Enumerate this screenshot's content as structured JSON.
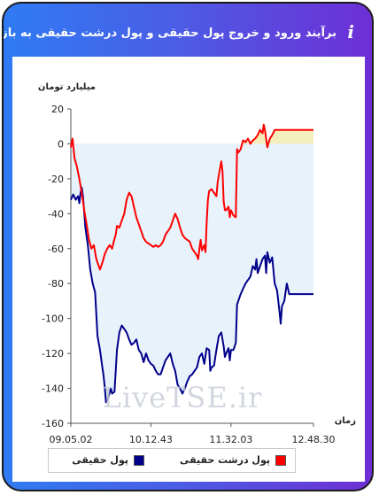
{
  "header": {
    "title": "برآیند ورود و خروج پول حقیقی و پول درشت حقیقی به بازار",
    "info_icon": "info-icon"
  },
  "watermark": "LiveTSE.ir",
  "chart_data": {
    "type": "line",
    "ylabel": "میلیارد تومان",
    "xlabel": "زمان",
    "ylim": [
      -160,
      20
    ],
    "yticks": [
      20,
      0,
      -20,
      -40,
      -60,
      -80,
      -100,
      -120,
      -140,
      -160
    ],
    "xlim": [
      0,
      100
    ],
    "xticks": [
      {
        "x": 0,
        "label": "09.05.02"
      },
      {
        "x": 33,
        "label": "10.12.43"
      },
      {
        "x": 66,
        "label": "11.32.03"
      },
      {
        "x": 100,
        "label": "12.48.30"
      }
    ],
    "legend": "bottom",
    "series": [
      {
        "name": "پول درشت حقیقی",
        "color": "#ff0000",
        "fill": "#f3eebc",
        "points": [
          [
            0,
            -2
          ],
          [
            0.7,
            3
          ],
          [
            1.5,
            -8
          ],
          [
            2.5,
            -13
          ],
          [
            3.5,
            -20
          ],
          [
            4.5,
            -28
          ],
          [
            5.5,
            -38
          ],
          [
            6.5,
            -46
          ],
          [
            7.5,
            -55
          ],
          [
            8.5,
            -60
          ],
          [
            9.5,
            -58
          ],
          [
            10.5,
            -66
          ],
          [
            11.5,
            -70
          ],
          [
            12,
            -72
          ],
          [
            13,
            -68
          ],
          [
            14,
            -63
          ],
          [
            15,
            -60
          ],
          [
            16,
            -58
          ],
          [
            17,
            -60
          ],
          [
            17.5,
            -57
          ],
          [
            18.5,
            -52
          ],
          [
            19,
            -47
          ],
          [
            20,
            -48
          ],
          [
            21,
            -44
          ],
          [
            22,
            -40
          ],
          [
            23,
            -32
          ],
          [
            24,
            -28
          ],
          [
            25,
            -30
          ],
          [
            26,
            -36
          ],
          [
            27,
            -42
          ],
          [
            28,
            -46
          ],
          [
            29,
            -50
          ],
          [
            30,
            -54
          ],
          [
            31,
            -56
          ],
          [
            32,
            -57
          ],
          [
            33,
            -58
          ],
          [
            34,
            -59
          ],
          [
            35,
            -58
          ],
          [
            36,
            -59
          ],
          [
            37,
            -58
          ],
          [
            38,
            -56
          ],
          [
            39,
            -52
          ],
          [
            40,
            -50
          ],
          [
            41,
            -48
          ],
          [
            42,
            -44
          ],
          [
            43,
            -40
          ],
          [
            44,
            -43
          ],
          [
            45,
            -48
          ],
          [
            46,
            -52
          ],
          [
            47,
            -54
          ],
          [
            48,
            -55
          ],
          [
            49,
            -56
          ],
          [
            50,
            -60
          ],
          [
            51,
            -62
          ],
          [
            52,
            -64
          ],
          [
            52.5,
            -66
          ],
          [
            53,
            -60
          ],
          [
            53.5,
            -55
          ],
          [
            54,
            -61
          ],
          [
            55,
            -58
          ],
          [
            55.5,
            -62
          ],
          [
            56,
            -45
          ],
          [
            56.5,
            -32
          ],
          [
            57,
            -27
          ],
          [
            58,
            -26
          ],
          [
            59,
            -28
          ],
          [
            60,
            -30
          ],
          [
            60.5,
            -22
          ],
          [
            61,
            -18
          ],
          [
            62,
            -10
          ],
          [
            62.5,
            -16
          ],
          [
            63,
            -33
          ],
          [
            63.5,
            -38
          ],
          [
            64,
            -38
          ],
          [
            65,
            -36
          ],
          [
            65.5,
            -42
          ],
          [
            66,
            -38
          ],
          [
            67,
            -41
          ],
          [
            68,
            -42
          ],
          [
            68.5,
            -3
          ],
          [
            69,
            -5
          ],
          [
            70,
            -3
          ],
          [
            71,
            2
          ],
          [
            72,
            1
          ],
          [
            73,
            3
          ],
          [
            74,
            0
          ],
          [
            75,
            2
          ],
          [
            76,
            3
          ],
          [
            77,
            5
          ],
          [
            78,
            8
          ],
          [
            79,
            6
          ],
          [
            79.5,
            11
          ],
          [
            80,
            8
          ],
          [
            81,
            -2
          ],
          [
            82,
            3
          ],
          [
            83,
            5
          ],
          [
            84,
            8
          ],
          [
            85,
            8
          ],
          [
            88,
            8
          ],
          [
            90,
            8
          ],
          [
            100,
            8
          ]
        ]
      },
      {
        "name": "پول حقیقی",
        "color": "#00008b",
        "fill": "#e8f2fb",
        "points": [
          [
            0,
            -32
          ],
          [
            1,
            -29
          ],
          [
            2,
            -32
          ],
          [
            3,
            -30
          ],
          [
            3.5,
            -34
          ],
          [
            4,
            -28
          ],
          [
            4.5,
            -25
          ],
          [
            5,
            -30
          ],
          [
            6,
            -48
          ],
          [
            7,
            -58
          ],
          [
            8,
            -72
          ],
          [
            9,
            -80
          ],
          [
            10,
            -85
          ],
          [
            10.5,
            -98
          ],
          [
            11,
            -110
          ],
          [
            12,
            -118
          ],
          [
            13,
            -128
          ],
          [
            13.5,
            -133
          ],
          [
            14,
            -140
          ],
          [
            14.5,
            -148
          ],
          [
            15.5,
            -145
          ],
          [
            16.5,
            -140
          ],
          [
            17,
            -143
          ],
          [
            18,
            -142
          ],
          [
            18.5,
            -130
          ],
          [
            19,
            -118
          ],
          [
            20,
            -108
          ],
          [
            21,
            -104
          ],
          [
            22,
            -106
          ],
          [
            23,
            -108
          ],
          [
            24,
            -112
          ],
          [
            25,
            -115
          ],
          [
            26,
            -114
          ],
          [
            27,
            -112
          ],
          [
            28,
            -118
          ],
          [
            29,
            -120
          ],
          [
            30,
            -125
          ],
          [
            31,
            -120
          ],
          [
            32,
            -124
          ],
          [
            33,
            -126
          ],
          [
            34,
            -127
          ],
          [
            35,
            -130
          ],
          [
            36,
            -132
          ],
          [
            37,
            -132
          ],
          [
            38,
            -128
          ],
          [
            39,
            -124
          ],
          [
            40,
            -122
          ],
          [
            41,
            -120
          ],
          [
            42,
            -126
          ],
          [
            43,
            -130
          ],
          [
            44,
            -138
          ],
          [
            45,
            -140
          ],
          [
            46,
            -143
          ],
          [
            47,
            -140
          ],
          [
            48,
            -136
          ],
          [
            49,
            -133
          ],
          [
            50,
            -132
          ],
          [
            51,
            -130
          ],
          [
            52,
            -128
          ],
          [
            53,
            -122
          ],
          [
            54,
            -120
          ],
          [
            55,
            -126
          ],
          [
            56,
            -117
          ],
          [
            57,
            -118
          ],
          [
            57.5,
            -130
          ],
          [
            58,
            -128
          ],
          [
            59,
            -127
          ],
          [
            60,
            -118
          ],
          [
            61,
            -110
          ],
          [
            62,
            -108
          ],
          [
            63,
            -116
          ],
          [
            63.5,
            -122
          ],
          [
            64,
            -120
          ],
          [
            65,
            -117
          ],
          [
            65.5,
            -124
          ],
          [
            66,
            -118
          ],
          [
            67,
            -118
          ],
          [
            68,
            -114
          ],
          [
            68.5,
            -92
          ],
          [
            69,
            -90
          ],
          [
            70,
            -86
          ],
          [
            71,
            -83
          ],
          [
            72,
            -80
          ],
          [
            73,
            -78
          ],
          [
            74,
            -76
          ],
          [
            75,
            -70
          ],
          [
            76,
            -72
          ],
          [
            76.5,
            -66
          ],
          [
            77,
            -74
          ],
          [
            78,
            -70
          ],
          [
            79,
            -66
          ],
          [
            80,
            -64
          ],
          [
            80.5,
            -74
          ],
          [
            81,
            -62
          ],
          [
            82,
            -68
          ],
          [
            83,
            -65
          ],
          [
            84,
            -80
          ],
          [
            85,
            -84
          ],
          [
            86,
            -96
          ],
          [
            86.5,
            -103
          ],
          [
            87,
            -93
          ],
          [
            88,
            -90
          ],
          [
            89,
            -80
          ],
          [
            90,
            -86
          ],
          [
            92,
            -86
          ],
          [
            95,
            -86
          ],
          [
            100,
            -86
          ]
        ]
      }
    ]
  },
  "legend_items": {
    "red": "پول درشت حقیقی",
    "blue": "پول حقیقی"
  }
}
